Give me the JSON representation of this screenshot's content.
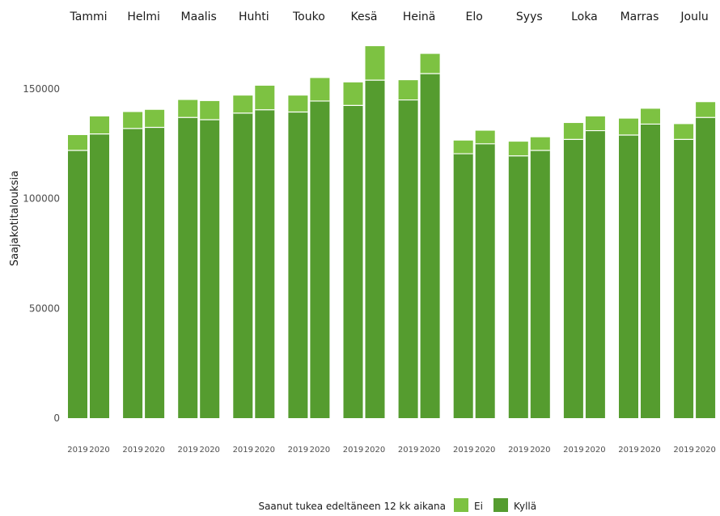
{
  "chart_data": {
    "type": "bar",
    "stacked": true,
    "ylabel": "Saajakotitalouksia",
    "xlabel": "",
    "ylim": [
      0,
      180000
    ],
    "yticks": [
      0,
      50000,
      100000,
      150000
    ],
    "ytick_labels": [
      "0",
      "50000",
      "100000",
      "150000"
    ],
    "legend": {
      "title": "Saanut tukea edeltäneen 12 kk aikana",
      "placement": "bottom",
      "entries": [
        {
          "name": "Ei",
          "color": "#7dc242"
        },
        {
          "name": "Kyllä",
          "color": "#559c2f"
        }
      ]
    },
    "colors": {
      "Kyllä": "#559c2f",
      "Ei": "#7dc242"
    },
    "series": [
      {
        "name": "Kyllä"
      },
      {
        "name": "Ei"
      }
    ],
    "facets": [
      {
        "label": "Tammi",
        "bars": [
          {
            "year": "2019",
            "kylla": 122000,
            "ei": 7000
          },
          {
            "year": "2020",
            "kylla": 129500,
            "ei": 8000
          }
        ]
      },
      {
        "label": "Helmi",
        "bars": [
          {
            "year": "2019",
            "kylla": 132000,
            "ei": 7500
          },
          {
            "year": "2020",
            "kylla": 132500,
            "ei": 8000
          }
        ]
      },
      {
        "label": "Maalis",
        "bars": [
          {
            "year": "2019",
            "kylla": 137000,
            "ei": 8000
          },
          {
            "year": "2020",
            "kylla": 136000,
            "ei": 8500
          }
        ]
      },
      {
        "label": "Huhti",
        "bars": [
          {
            "year": "2019",
            "kylla": 139000,
            "ei": 8000
          },
          {
            "year": "2020",
            "kylla": 140500,
            "ei": 11000
          }
        ]
      },
      {
        "label": "Touko",
        "bars": [
          {
            "year": "2019",
            "kylla": 139500,
            "ei": 7500
          },
          {
            "year": "2020",
            "kylla": 144500,
            "ei": 10500
          }
        ]
      },
      {
        "label": "Kesä",
        "bars": [
          {
            "year": "2019",
            "kylla": 142500,
            "ei": 10500
          },
          {
            "year": "2020",
            "kylla": 154000,
            "ei": 15500
          }
        ]
      },
      {
        "label": "Heinä",
        "bars": [
          {
            "year": "2019",
            "kylla": 145000,
            "ei": 9000
          },
          {
            "year": "2020",
            "kylla": 157000,
            "ei": 9000
          }
        ]
      },
      {
        "label": "Elo",
        "bars": [
          {
            "year": "2019",
            "kylla": 120500,
            "ei": 6000
          },
          {
            "year": "2020",
            "kylla": 125000,
            "ei": 6000
          }
        ]
      },
      {
        "label": "Syys",
        "bars": [
          {
            "year": "2019",
            "kylla": 119500,
            "ei": 6500
          },
          {
            "year": "2020",
            "kylla": 122000,
            "ei": 6000
          }
        ]
      },
      {
        "label": "Loka",
        "bars": [
          {
            "year": "2019",
            "kylla": 127000,
            "ei": 7500
          },
          {
            "year": "2020",
            "kylla": 131000,
            "ei": 6500
          }
        ]
      },
      {
        "label": "Marras",
        "bars": [
          {
            "year": "2019",
            "kylla": 129000,
            "ei": 7500
          },
          {
            "year": "2020",
            "kylla": 134000,
            "ei": 7000
          }
        ]
      },
      {
        "label": "Joulu",
        "bars": [
          {
            "year": "2019",
            "kylla": 127000,
            "ei": 7000
          },
          {
            "year": "2020",
            "kylla": 137000,
            "ei": 7000
          }
        ]
      }
    ]
  }
}
